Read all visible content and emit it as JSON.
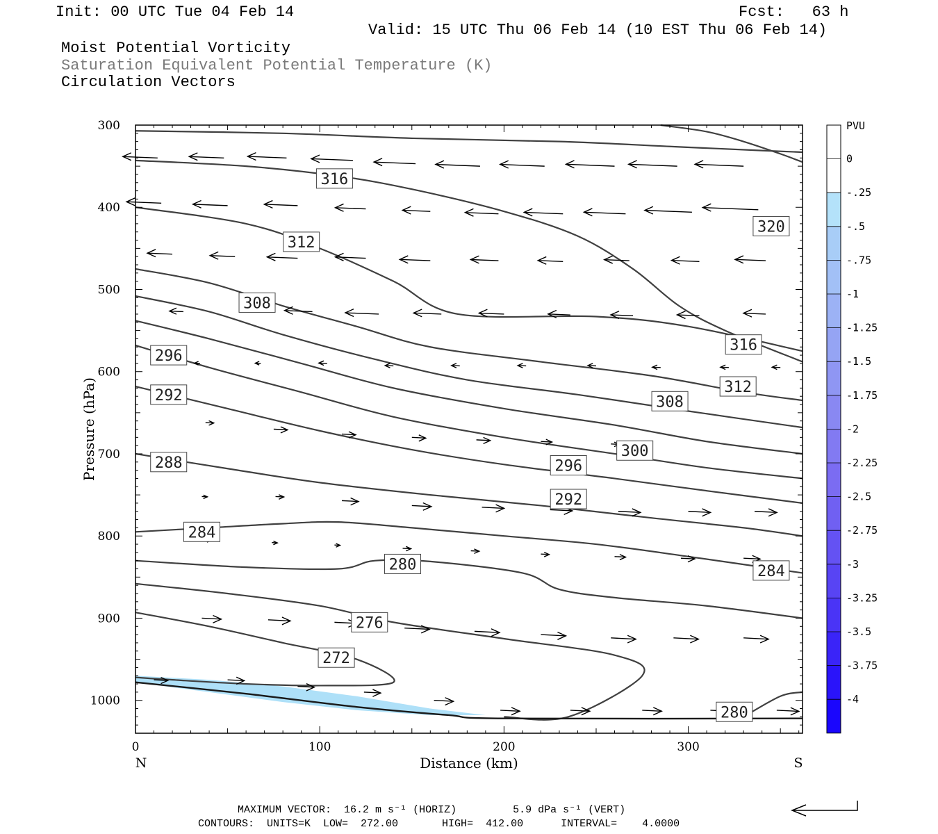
{
  "header": {
    "init": "Init: 00 UTC Tue 04 Feb 14",
    "fcst": "Fcst:   63 h",
    "valid": "Valid: 15 UTC Thu 06 Feb 14 (10 EST Thu 06 Feb 14)",
    "field1": "Moist Potential Vorticity",
    "field2": "Saturation Equivalent Potential Temperature (K)",
    "field3": "Circulation Vectors"
  },
  "footer": {
    "max_vector": "MAXIMUM VECTOR:  16.2 m s⁻¹ (HORIZ)         5.9 dPa s⁻¹ (VERT)",
    "contours": "CONTOURS:  UNITS=K  LOW=  272.00       HIGH=  412.00      INTERVAL=    4.0000"
  },
  "colors": {
    "contour": "#404040",
    "pv_fill": "#aee0f8",
    "frame": "#000000"
  },
  "chart_data": {
    "type": "contour",
    "xlabel": "Distance (km)",
    "ylabel": "Pressure (hPa)",
    "xlim": [
      0,
      362
    ],
    "ylim": [
      1040,
      300
    ],
    "x_ticks": [
      0,
      100,
      200,
      300
    ],
    "y_ticks": [
      300,
      400,
      500,
      600,
      700,
      800,
      900,
      1000
    ],
    "x_end_labels": {
      "left": "N",
      "right": "S"
    },
    "colorbar": {
      "title": "PVU",
      "levels": [
        "0",
        "-.25",
        "-.5",
        "-.75",
        "-1",
        "-1.25",
        "-1.5",
        "-1.75",
        "-2",
        "-2.25",
        "-2.5",
        "-2.75",
        "-3",
        "-3.25",
        "-3.5",
        "-3.75",
        "-4"
      ],
      "colors": [
        "#ffffff",
        "#ffffff",
        "#b4e2fa",
        "#a8cdf7",
        "#a2c0f6",
        "#9cb2f5",
        "#95a4f4",
        "#8f96f3",
        "#8988f2",
        "#827af2",
        "#7b6cf2",
        "#7060f2",
        "#6452f3",
        "#5844f4",
        "#4a34f6",
        "#3a24f8",
        "#2a14fa",
        "#1a06fd"
      ]
    },
    "contours": [
      {
        "level": 320,
        "points": [
          [
            0,
            307
          ],
          [
            80,
            310
          ],
          [
            150,
            316
          ],
          [
            230,
            320
          ],
          [
            290,
            326
          ],
          [
            340,
            331
          ],
          [
            362,
            333
          ]
        ]
      },
      {
        "level": 320,
        "points": [
          [
            285,
            300
          ],
          [
            310,
            308
          ],
          [
            330,
            320
          ],
          [
            350,
            335
          ],
          [
            362,
            345
          ]
        ]
      },
      {
        "level": 316,
        "points": [
          [
            0,
            343
          ],
          [
            60,
            350
          ],
          [
            110,
            362
          ],
          [
            150,
            378
          ],
          [
            200,
            405
          ],
          [
            240,
            435
          ],
          [
            270,
            475
          ],
          [
            295,
            520
          ],
          [
            320,
            550
          ],
          [
            362,
            588
          ]
        ]
      },
      {
        "level": 312,
        "points": [
          [
            0,
            400
          ],
          [
            60,
            420
          ],
          [
            100,
            450
          ],
          [
            140,
            490
          ],
          [
            175,
            530
          ],
          [
            250,
            533
          ],
          [
            300,
            545
          ],
          [
            362,
            575
          ]
        ]
      },
      {
        "level": 308,
        "points": [
          [
            0,
            475
          ],
          [
            40,
            492
          ],
          [
            80,
            520
          ],
          [
            120,
            545
          ],
          [
            160,
            570
          ],
          [
            220,
            588
          ],
          [
            280,
            605
          ],
          [
            330,
            625
          ],
          [
            362,
            635
          ]
        ]
      },
      {
        "level": 304,
        "points": [
          [
            0,
            508
          ],
          [
            40,
            527
          ],
          [
            80,
            555
          ],
          [
            130,
            585
          ],
          [
            180,
            610
          ],
          [
            240,
            628
          ],
          [
            300,
            648
          ],
          [
            362,
            668
          ]
        ]
      },
      {
        "level": 300,
        "points": [
          [
            0,
            538
          ],
          [
            40,
            560
          ],
          [
            90,
            590
          ],
          [
            140,
            620
          ],
          [
            200,
            645
          ],
          [
            260,
            665
          ],
          [
            310,
            685
          ],
          [
            362,
            700
          ]
        ]
      },
      {
        "level": 296,
        "points": [
          [
            0,
            568
          ],
          [
            40,
            595
          ],
          [
            90,
            625
          ],
          [
            140,
            655
          ],
          [
            200,
            680
          ],
          [
            260,
            700
          ],
          [
            310,
            717
          ],
          [
            362,
            730
          ]
        ]
      },
      {
        "level": 292,
        "points": [
          [
            0,
            618
          ],
          [
            50,
            645
          ],
          [
            100,
            672
          ],
          [
            150,
            695
          ],
          [
            200,
            713
          ],
          [
            260,
            730
          ],
          [
            310,
            745
          ],
          [
            362,
            760
          ]
        ]
      },
      {
        "level": 288,
        "points": [
          [
            0,
            700
          ],
          [
            50,
            718
          ],
          [
            100,
            735
          ],
          [
            160,
            750
          ],
          [
            220,
            763
          ],
          [
            280,
            778
          ],
          [
            330,
            790
          ],
          [
            362,
            800
          ]
        ]
      },
      {
        "level": 284,
        "points": [
          [
            0,
            795
          ],
          [
            40,
            790
          ],
          [
            80,
            785
          ],
          [
            110,
            783
          ],
          [
            150,
            790
          ],
          [
            200,
            800
          ],
          [
            250,
            810
          ],
          [
            300,
            825
          ],
          [
            362,
            845
          ]
        ]
      },
      {
        "level": 280,
        "points": [
          [
            0,
            830
          ],
          [
            60,
            838
          ],
          [
            110,
            840
          ],
          [
            130,
            830
          ],
          [
            160,
            831
          ],
          [
            210,
            845
          ],
          [
            230,
            865
          ],
          [
            260,
            875
          ],
          [
            310,
            885
          ],
          [
            362,
            900
          ]
        ]
      },
      {
        "level": 276,
        "points": [
          [
            0,
            858
          ],
          [
            50,
            870
          ],
          [
            100,
            885
          ],
          [
            140,
            905
          ],
          [
            200,
            925
          ],
          [
            260,
            945
          ],
          [
            275,
            970
          ],
          [
            235,
            1020
          ],
          [
            200,
            1020
          ]
        ]
      },
      {
        "level": 272,
        "points": [
          [
            0,
            893
          ],
          [
            40,
            910
          ],
          [
            80,
            930
          ],
          [
            120,
            950
          ],
          [
            140,
            978
          ],
          [
            100,
            982
          ],
          [
            60,
            980
          ],
          [
            20,
            975
          ],
          [
            0,
            972
          ]
        ]
      },
      {
        "level": 280,
        "points": [
          [
            330,
            1020
          ],
          [
            350,
            995
          ],
          [
            362,
            990
          ]
        ]
      }
    ],
    "ground_pressure": [
      [
        0,
        978
      ],
      [
        60,
        992
      ],
      [
        120,
        1008
      ],
      [
        170,
        1018
      ],
      [
        200,
        1022
      ],
      [
        362,
        1022
      ]
    ],
    "pv_region": [
      [
        0,
        970
      ],
      [
        40,
        975
      ],
      [
        80,
        983
      ],
      [
        120,
        995
      ],
      [
        160,
        1010
      ],
      [
        190,
        1018
      ],
      [
        160,
        1018
      ],
      [
        120,
        1012
      ],
      [
        80,
        1002
      ],
      [
        40,
        990
      ],
      [
        0,
        978
      ]
    ],
    "contour_labels": [
      {
        "text": "316",
        "x": 108,
        "p": 365
      },
      {
        "text": "312",
        "x": 90,
        "p": 442
      },
      {
        "text": "308",
        "x": 66,
        "p": 516
      },
      {
        "text": "296",
        "x": 18,
        "p": 580
      },
      {
        "text": "292",
        "x": 18,
        "p": 628
      },
      {
        "text": "288",
        "x": 18,
        "p": 710
      },
      {
        "text": "284",
        "x": 36,
        "p": 795
      },
      {
        "text": "280",
        "x": 145,
        "p": 834
      },
      {
        "text": "276",
        "x": 127,
        "p": 905
      },
      {
        "text": "272",
        "x": 109,
        "p": 948
      },
      {
        "text": "320",
        "x": 345,
        "p": 423
      },
      {
        "text": "316",
        "x": 330,
        "p": 567
      },
      {
        "text": "312",
        "x": 327,
        "p": 618
      },
      {
        "text": "308",
        "x": 290,
        "p": 636
      },
      {
        "text": "300",
        "x": 271,
        "p": 696
      },
      {
        "text": "296",
        "x": 235,
        "p": 714
      },
      {
        "text": "292",
        "x": 235,
        "p": 755
      },
      {
        "text": "284",
        "x": 345,
        "p": 842
      },
      {
        "text": "280",
        "x": 325,
        "p": 1014
      }
    ],
    "vectors": [
      {
        "rows": [
          340,
          398,
          458,
          528,
          590,
          660,
          752,
          805,
          862,
          932,
          1020
        ]
      },
      [
        [
          [
            12,
            340,
            -25
          ],
          [
            48,
            340,
            -25
          ],
          [
            82,
            340,
            -28
          ],
          [
            118,
            343,
            -30
          ],
          [
            152,
            347,
            -30
          ],
          [
            187,
            350,
            -32
          ],
          [
            222,
            350,
            -32
          ],
          [
            260,
            350,
            -35
          ],
          [
            294,
            350,
            -35
          ],
          [
            330,
            350,
            -35
          ]
        ],
        [
          [
            14,
            395,
            -25
          ],
          [
            50,
            398,
            -25
          ],
          [
            88,
            398,
            -24
          ],
          [
            125,
            402,
            -22
          ],
          [
            160,
            405,
            -20
          ],
          [
            197,
            408,
            -24
          ],
          [
            232,
            408,
            -28
          ],
          [
            266,
            408,
            -30
          ],
          [
            302,
            406,
            -34
          ],
          [
            338,
            403,
            -40
          ]
        ],
        [
          [
            20,
            457,
            -18
          ],
          [
            54,
            460,
            -18
          ],
          [
            88,
            462,
            -22
          ],
          [
            125,
            462,
            -22
          ],
          [
            160,
            465,
            -22
          ],
          [
            197,
            465,
            -20
          ],
          [
            232,
            466,
            -18
          ],
          [
            268,
            465,
            -18
          ],
          [
            306,
            466,
            -20
          ],
          [
            342,
            465,
            -22
          ]
        ],
        [
          [
            26,
            527,
            -10
          ],
          [
            96,
            527,
            -20
          ],
          [
            132,
            530,
            -24
          ],
          [
            166,
            530,
            -20
          ],
          [
            200,
            530,
            -18
          ],
          [
            236,
            531,
            -16
          ],
          [
            270,
            532,
            -16
          ],
          [
            306,
            532,
            -16
          ],
          [
            342,
            530,
            -16
          ]
        ],
        [
          [
            35,
            590,
            -4
          ],
          [
            68,
            590,
            -4
          ],
          [
            104,
            590,
            -6
          ],
          [
            140,
            593,
            -6
          ],
          [
            176,
            593,
            -6
          ],
          [
            212,
            593,
            -6
          ],
          [
            250,
            593,
            -6
          ],
          [
            285,
            595,
            -6
          ],
          [
            322,
            595,
            -6
          ],
          [
            350,
            595,
            -6
          ]
        ],
        [
          [
            38,
            662,
            6
          ],
          [
            75,
            670,
            10
          ],
          [
            112,
            676,
            10
          ],
          [
            150,
            680,
            10
          ],
          [
            185,
            683,
            10
          ],
          [
            220,
            685,
            8
          ],
          [
            258,
            688,
            6
          ]
        ],
        [
          [
            36,
            752,
            4
          ],
          [
            76,
            752,
            6
          ],
          [
            112,
            757,
            12
          ],
          [
            150,
            763,
            14
          ],
          [
            188,
            765,
            16
          ],
          [
            225,
            768,
            16
          ],
          [
            262,
            770,
            16
          ],
          [
            300,
            770,
            16
          ],
          [
            336,
            770,
            16
          ]
        ],
        [
          [
            38,
            805,
            4
          ],
          [
            74,
            808,
            4
          ],
          [
            108,
            811,
            4
          ],
          [
            145,
            815,
            6
          ],
          [
            182,
            818,
            6
          ],
          [
            220,
            822,
            6
          ],
          [
            260,
            825,
            8
          ],
          [
            296,
            827,
            10
          ],
          [
            330,
            827,
            12
          ]
        ],
        [
          [
            36,
            900,
            14
          ],
          [
            72,
            902,
            16
          ],
          [
            108,
            905,
            16
          ],
          [
            146,
            912,
            18
          ],
          [
            184,
            916,
            18
          ],
          [
            220,
            920,
            18
          ],
          [
            258,
            924,
            18
          ],
          [
            292,
            924,
            18
          ],
          [
            330,
            924,
            18
          ]
        ],
        [
          [
            10,
            975,
            10
          ],
          [
            50,
            975,
            12
          ],
          [
            88,
            983,
            12
          ],
          [
            124,
            990,
            12
          ],
          [
            162,
            1000,
            14
          ],
          [
            198,
            1012,
            14
          ],
          [
            236,
            1012,
            14
          ],
          [
            275,
            1012,
            14
          ],
          [
            312,
            1012,
            16
          ],
          [
            348,
            1012,
            16
          ]
        ]
      ]
    ]
  }
}
